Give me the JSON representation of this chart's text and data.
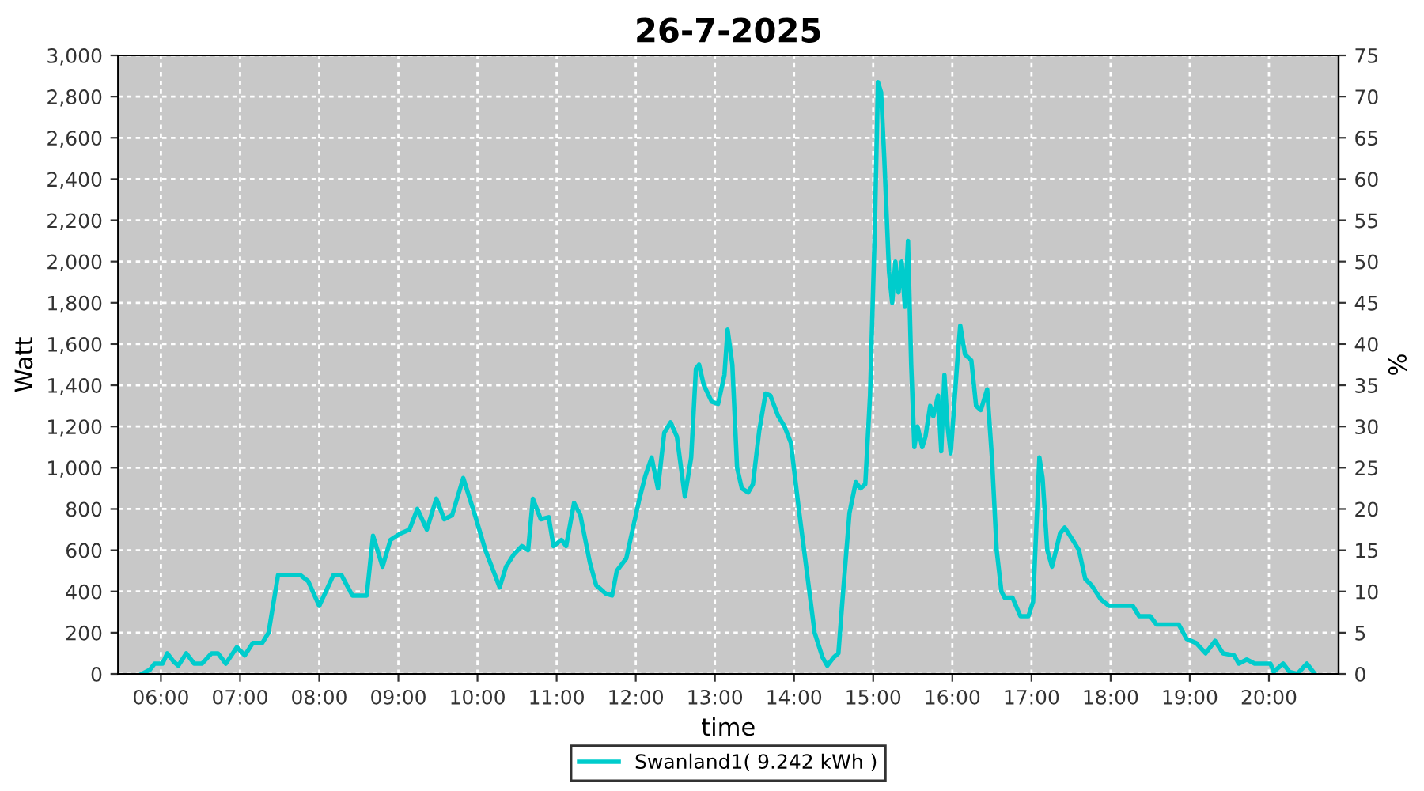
{
  "chart_data": {
    "type": "line",
    "title": "26-7-2025",
    "xlabel": "time",
    "ylabel": "Watt",
    "y2label": "%",
    "xlim": [
      5.46,
      20.88
    ],
    "xticks": [
      {
        "value": 6,
        "label": "06:00"
      },
      {
        "value": 7,
        "label": "07:00"
      },
      {
        "value": 8,
        "label": "08:00"
      },
      {
        "value": 9,
        "label": "09:00"
      },
      {
        "value": 10,
        "label": "10:00"
      },
      {
        "value": 11,
        "label": "11:00"
      },
      {
        "value": 12,
        "label": "12:00"
      },
      {
        "value": 13,
        "label": "13:00"
      },
      {
        "value": 14,
        "label": "14:00"
      },
      {
        "value": 15,
        "label": "15:00"
      },
      {
        "value": 16,
        "label": "16:00"
      },
      {
        "value": 17,
        "label": "17:00"
      },
      {
        "value": 18,
        "label": "18:00"
      },
      {
        "value": 19,
        "label": "19:00"
      },
      {
        "value": 20,
        "label": "20:00"
      }
    ],
    "ylim": [
      0,
      3000
    ],
    "yticks": [
      0,
      200,
      400,
      600,
      800,
      {
        "value": 1000,
        "label": "1,000"
      },
      {
        "value": 1200,
        "label": "1,200"
      },
      {
        "value": 1400,
        "label": "1,400"
      },
      {
        "value": 1600,
        "label": "1,600"
      },
      {
        "value": 1800,
        "label": "1,800"
      },
      {
        "value": 2000,
        "label": "2,000"
      },
      {
        "value": 2200,
        "label": "2,200"
      },
      {
        "value": 2400,
        "label": "2,400"
      },
      {
        "value": 2600,
        "label": "2,600"
      },
      {
        "value": 2800,
        "label": "2,800"
      },
      {
        "value": 3000,
        "label": "3,000"
      }
    ],
    "y2lim": [
      0,
      75
    ],
    "y2ticks": [
      0,
      5,
      10,
      15,
      20,
      25,
      30,
      35,
      40,
      45,
      50,
      55,
      60,
      65,
      70,
      75
    ],
    "grid": true,
    "legend": "bottom",
    "marker": "none",
    "line_style": "solid",
    "series": [
      {
        "name": "Swanland1( 9.242 kWh )",
        "color": "#00cccc",
        "x": [
          5.76,
          5.86,
          5.92,
          6.02,
          6.08,
          6.16,
          6.22,
          6.32,
          6.42,
          6.52,
          6.64,
          6.72,
          6.82,
          6.96,
          7.06,
          7.16,
          7.28,
          7.36,
          7.48,
          7.76,
          7.86,
          8.0,
          8.18,
          8.28,
          8.42,
          8.6,
          8.68,
          8.8,
          8.9,
          9.02,
          9.14,
          9.24,
          9.36,
          9.48,
          9.58,
          9.68,
          9.82,
          9.96,
          10.1,
          10.28,
          10.36,
          10.46,
          10.56,
          10.64,
          10.7,
          10.8,
          10.9,
          10.96,
          11.06,
          11.12,
          11.22,
          11.3,
          11.42,
          11.5,
          11.62,
          11.7,
          11.76,
          11.88,
          11.96,
          12.04,
          12.12,
          12.2,
          12.28,
          12.36,
          12.44,
          12.52,
          12.62,
          12.7,
          12.76,
          12.8,
          12.86,
          12.96,
          13.04,
          13.12,
          13.16,
          13.22,
          13.28,
          13.34,
          13.42,
          13.48,
          13.56,
          13.64,
          13.7,
          13.8,
          13.88,
          13.96,
          14.06,
          14.16,
          14.26,
          14.36,
          14.42,
          14.5,
          14.56,
          14.62,
          14.7,
          14.78,
          14.84,
          14.9,
          14.96,
          15.02,
          15.06,
          15.1,
          15.14,
          15.2,
          15.24,
          15.28,
          15.32,
          15.36,
          15.4,
          15.44,
          15.48,
          15.52,
          15.56,
          15.62,
          15.66,
          15.72,
          15.76,
          15.82,
          15.86,
          15.9,
          15.94,
          15.98,
          16.06,
          16.1,
          16.16,
          16.24,
          16.3,
          16.36,
          16.44,
          16.5,
          16.56,
          16.62,
          16.66,
          16.76,
          16.86,
          16.96,
          17.02,
          17.06,
          17.1,
          17.14,
          17.2,
          17.26,
          17.36,
          17.42,
          17.52,
          17.6,
          17.68,
          17.76,
          17.88,
          17.98,
          18.28,
          18.36,
          18.5,
          18.58,
          18.86,
          18.96,
          19.08,
          19.2,
          19.32,
          19.42,
          19.56,
          19.62,
          19.72,
          19.82,
          20.02,
          20.06,
          20.18,
          20.26,
          20.36,
          20.48,
          20.58
        ],
        "values": [
          0,
          20,
          50,
          50,
          100,
          60,
          40,
          100,
          50,
          50,
          100,
          100,
          50,
          130,
          90,
          150,
          150,
          200,
          480,
          480,
          450,
          330,
          480,
          480,
          380,
          380,
          670,
          520,
          650,
          680,
          700,
          800,
          700,
          850,
          750,
          770,
          950,
          780,
          600,
          420,
          520,
          580,
          620,
          600,
          850,
          750,
          760,
          620,
          650,
          620,
          830,
          770,
          540,
          430,
          390,
          380,
          500,
          560,
          700,
          840,
          960,
          1050,
          900,
          1170,
          1220,
          1150,
          860,
          1050,
          1480,
          1500,
          1400,
          1320,
          1310,
          1450,
          1670,
          1500,
          1000,
          900,
          880,
          920,
          1180,
          1360,
          1350,
          1250,
          1200,
          1120,
          800,
          500,
          200,
          80,
          40,
          80,
          100,
          400,
          780,
          930,
          900,
          920,
          1350,
          2150,
          2870,
          2820,
          2500,
          1950,
          1800,
          2000,
          1850,
          2000,
          1780,
          2100,
          1500,
          1100,
          1200,
          1100,
          1150,
          1300,
          1250,
          1350,
          1080,
          1450,
          1200,
          1070,
          1500,
          1690,
          1550,
          1520,
          1300,
          1280,
          1380,
          1050,
          600,
          400,
          370,
          370,
          280,
          280,
          350,
          700,
          1050,
          950,
          600,
          520,
          680,
          710,
          650,
          600,
          460,
          430,
          360,
          330,
          330,
          280,
          280,
          240,
          240,
          170,
          150,
          100,
          160,
          100,
          90,
          50,
          70,
          50,
          50,
          10,
          50,
          10,
          0,
          50,
          0
        ]
      }
    ]
  }
}
